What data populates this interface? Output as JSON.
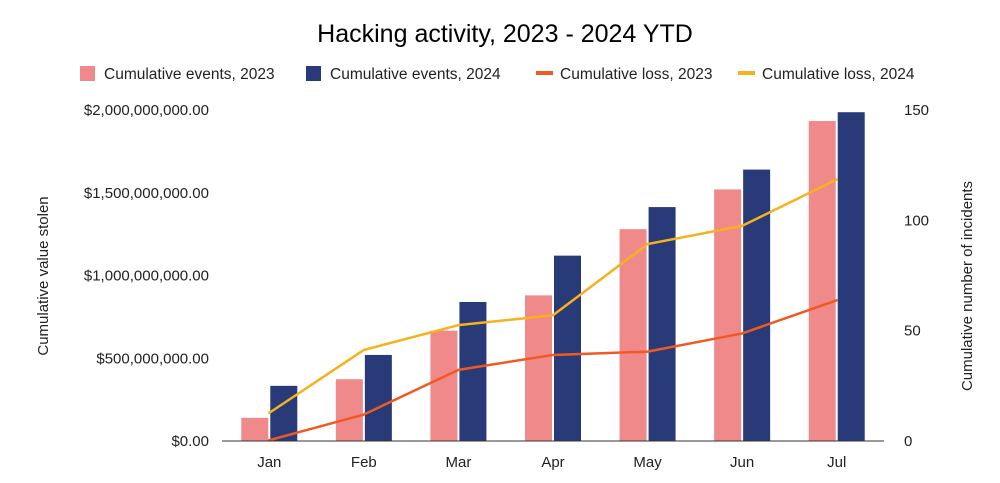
{
  "chart_data": {
    "type": "bar",
    "title": "Hacking activity, 2023 - 2024 YTD",
    "categories": [
      "Jan",
      "Feb",
      "Mar",
      "Apr",
      "May",
      "Jun",
      "Jul"
    ],
    "ylabel": "Cumulative value stolen",
    "y2label": "Cumulative number of incidents",
    "ylim": [
      0,
      2000000000
    ],
    "y2lim": [
      0,
      150
    ],
    "yticks": [
      "$0.00",
      "$500,000,000.00",
      "$1,000,000,000.00",
      "$1,500,000,000.00",
      "$2,000,000,000.00"
    ],
    "y2ticks": [
      "0",
      "50",
      "100",
      "150"
    ],
    "legend_position": "top",
    "grid": false,
    "series": [
      {
        "name": "Cumulative events, 2023",
        "kind": "bar",
        "axis": "right",
        "color": "#f08a8a",
        "values": [
          10.5,
          28,
          50,
          66,
          96,
          114,
          145
        ]
      },
      {
        "name": "Cumulative events, 2024",
        "kind": "bar",
        "axis": "right",
        "color": "#283a78",
        "values": [
          25,
          39,
          63,
          84,
          106,
          123,
          149
        ]
      },
      {
        "name": "Cumulative loss, 2023",
        "kind": "line",
        "axis": "left",
        "color": "#f05a22",
        "values": [
          5000000,
          160000000,
          430000000,
          520000000,
          540000000,
          650000000,
          850000000
        ]
      },
      {
        "name": "Cumulative loss, 2024",
        "kind": "line",
        "axis": "left",
        "color": "#f5b21c",
        "values": [
          170000000,
          550000000,
          700000000,
          760000000,
          1190000000,
          1300000000,
          1580000000
        ]
      }
    ]
  }
}
